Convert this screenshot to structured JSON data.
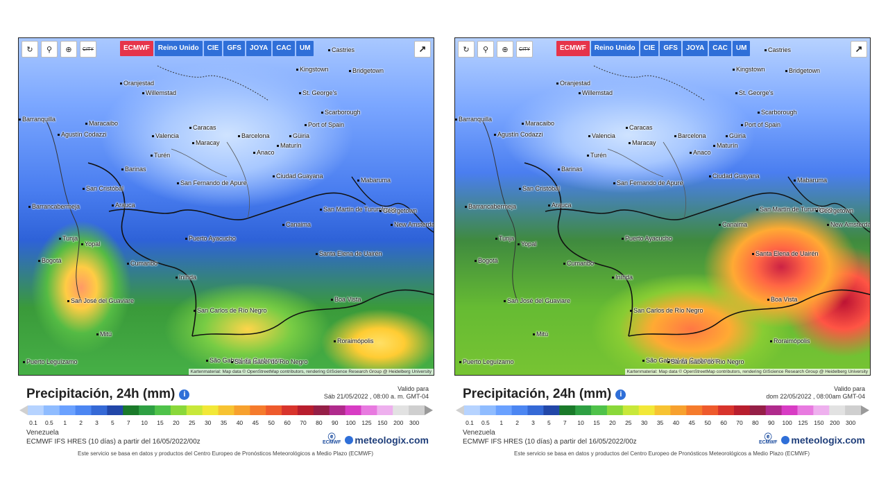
{
  "panels": [
    {
      "toolbar": {
        "refresh": "↻",
        "locate": "⚲",
        "zoom": "⊕",
        "city": "CITY"
      },
      "models": [
        "ECMWF",
        "Reino Unido",
        "CIE",
        "GFS",
        "JOYA",
        "CAC",
        "UM"
      ],
      "active_model": "ECMWF",
      "share_icon": "share-icon",
      "cities": [
        "Castries",
        "Kingstown",
        "Bridgetown",
        "Oranjestad",
        "Willemstad",
        "St. George's",
        "Scarborough",
        "Port of Spain",
        "Barranquilla",
        "Maracaibo",
        "Caracas",
        "Valencia",
        "Maracay",
        "Barcelona",
        "Güiria",
        "Maturín",
        "Anaco",
        "Turén",
        "Barinas",
        "Ciudad Guayana",
        "Mabaruma",
        "San Cristóbal",
        "San Fernando de Apure",
        "Arauca",
        "San Martín de Turumbang",
        "Georgetown",
        "New Amsterdam",
        "Barrancabermeja",
        "Canaima",
        "Tunja",
        "Yopal",
        "Puerto Ayacucho",
        "Bogotá",
        "Santa Elena de Uairén",
        "Cumaribo",
        "Inírida",
        "San José del Guaviare",
        "Boa Vista",
        "San Carlos de Río Negro",
        "Mitú",
        "Roraimópolis",
        "São Gabriel da Cachoeira",
        "Santa Isabel do Rio Negro",
        "Puerto Leguízamo",
        "Agustín Codazzi"
      ],
      "attribution": "Kartenmaterial: Map data © OpenStreetMap contributors, rendering GIScience Research Group @ Heidelberg University",
      "legend_title": "Precipitación, 24h (mm)",
      "valid_label": "Valido para",
      "valid_date": "Sáb 21/05/2022 , 08:00 a. m. GMT-04",
      "region": "Venezuela",
      "run": "ECMWF IFS HRES (10 días) a partir del 16/05/2022/00z",
      "note": "Este servicio se basa en datos y productos del Centro Europeo de Pronósticos Meteorológicos a Medio Plazo (ECMWF)",
      "brand": "meteologix.com",
      "ecmwf_logo": "ECMWF"
    },
    {
      "toolbar": {
        "refresh": "↻",
        "locate": "⚲",
        "zoom": "⊕",
        "city": "CITY"
      },
      "models": [
        "ECMWF",
        "Reino Unido",
        "CIE",
        "GFS",
        "JOYA",
        "CAC",
        "UM"
      ],
      "active_model": "ECMWF",
      "share_icon": "share-icon",
      "cities": [
        "Castries",
        "Kingstown",
        "Bridgetown",
        "Oranjestad",
        "Willemstad",
        "St. George's",
        "Scarborough",
        "Port of Spain",
        "Barranquilla",
        "Maracaibo",
        "Caracas",
        "Valencia",
        "Maracay",
        "Barcelona",
        "Güiria",
        "Maturín",
        "Anaco",
        "Turén",
        "Barinas",
        "Ciudad Guayana",
        "Mabaruma",
        "San Cristóbal",
        "San Fernando de Apure",
        "Arauca",
        "San Martín de Turumbang",
        "Georgetown",
        "New Amsterdam",
        "Barrancabermeja",
        "Canaima",
        "Tunja",
        "Yopal",
        "Puerto Ayacucho",
        "Bogotá",
        "Santa Elena de Uairén",
        "Cumaribo",
        "Inírida",
        "San José del Guaviare",
        "Boa Vista",
        "San Carlos de Río Negro",
        "Mitú",
        "Roraimópolis",
        "São Gabriel da Cachoeira",
        "Santa Isabel do Rio Negro",
        "Puerto Leguízamo",
        "Agustín Codazzi"
      ],
      "attribution": "Kartenmaterial: Map data © OpenStreetMap contributors, rendering GIScience Research Group @ Heidelberg University",
      "legend_title": "Precipitación, 24h (mm)",
      "valid_label": "Valido para",
      "valid_date": "dom 22/05/2022 , 08:00am GMT-04",
      "region": "Venezuela",
      "run": "ECMWF IFS HRES (10 días) a partir del 16/05/2022/00z",
      "note": "Este servicio se basa en datos y productos del Centro Europeo de Pronósticos Meteorológicos a Medio Plazo (ECMWF)",
      "brand": "meteologix.com",
      "ecmwf_logo": "ECMWF"
    }
  ],
  "scale": {
    "ticks": [
      "0.1",
      "0.5",
      "1",
      "2",
      "3",
      "5",
      "7",
      "10",
      "15",
      "20",
      "25",
      "30",
      "35",
      "40",
      "45",
      "50",
      "60",
      "70",
      "80",
      "90",
      "100",
      "125",
      "150",
      "200",
      "300"
    ],
    "colors": [
      "#b6d3ff",
      "#8fbcff",
      "#6aa1ff",
      "#4c86f2",
      "#3569d6",
      "#2247a8",
      "#1a7a2a",
      "#2ea043",
      "#4fc24a",
      "#8ad83a",
      "#c8e83a",
      "#f2e838",
      "#f7c332",
      "#f7a12e",
      "#f57b2c",
      "#ee5a2c",
      "#d8342c",
      "#b81e2e",
      "#951f47",
      "#b02a8c",
      "#d83cc4",
      "#e87ae0",
      "#eeb0ee",
      "#e2e2e2",
      "#cfcfcf"
    ]
  }
}
